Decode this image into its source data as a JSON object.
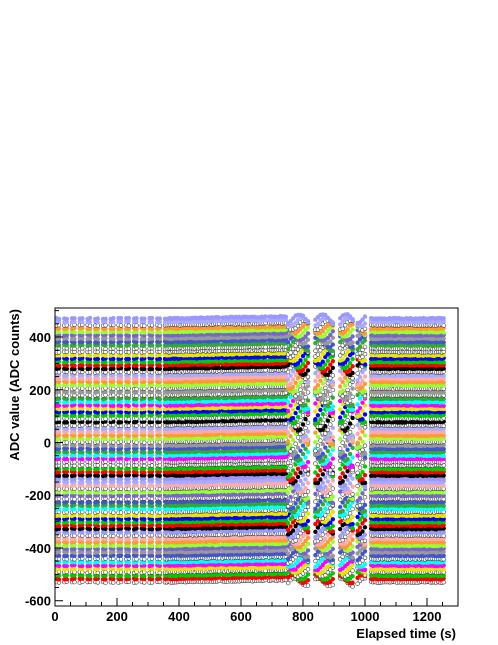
{
  "chart_data": {
    "type": "scatter",
    "title": "",
    "xlabel": "Elapsed time (s)",
    "ylabel": "ADC value (ADC counts)",
    "xlim": [
      0,
      1300
    ],
    "ylim": [
      -620,
      510
    ],
    "x_ticks": [
      0,
      200,
      400,
      600,
      800,
      1000,
      1200
    ],
    "y_ticks": [
      -600,
      -400,
      -200,
      0,
      200,
      400
    ],
    "grid": false,
    "legend": "none",
    "marker": "open and filled circles",
    "channel_count": 80,
    "channel_baseline_range": [
      -530,
      470
    ],
    "channel_colors": [
      "#000000",
      "#ff0000",
      "#00cc00",
      "#0000ff",
      "#e6e600",
      "#ff00ff",
      "#00ffff",
      "#33aa33",
      "#4455cc",
      "#999999",
      "#7766cc",
      "#99ff33",
      "#ff9933",
      "#ffaaaa",
      "#aaaaff",
      "#9999ff"
    ],
    "series_summary": [
      {
        "segment": "0-350 s",
        "behavior": "dense periodic samples, flat baselines"
      },
      {
        "segment": "350-750 s",
        "behavior": "continuous, slight upward drift"
      },
      {
        "segment": "750-1000 s",
        "behavior": "strong oscillations and gaps"
      },
      {
        "segment": "1000-1260 s",
        "behavior": "continuous, stable baselines"
      }
    ]
  }
}
